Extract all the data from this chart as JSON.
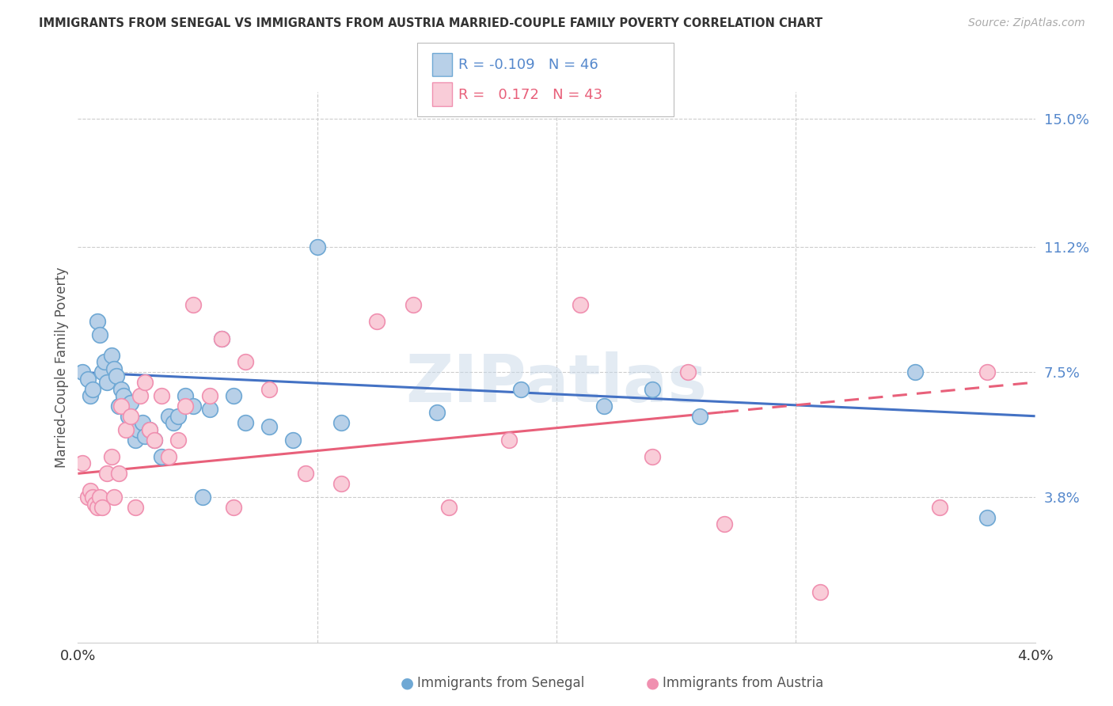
{
  "title": "IMMIGRANTS FROM SENEGAL VS IMMIGRANTS FROM AUSTRIA MARRIED-COUPLE FAMILY POVERTY CORRELATION CHART",
  "source": "Source: ZipAtlas.com",
  "ylabel": "Married-Couple Family Poverty",
  "xlim": [
    0.0,
    4.0
  ],
  "ylim": [
    -0.5,
    15.8
  ],
  "plot_ylim": [
    -0.5,
    15.8
  ],
  "yticks": [
    3.8,
    7.5,
    11.2,
    15.0
  ],
  "xtick_positions": [
    0.0,
    1.0,
    2.0,
    3.0,
    4.0
  ],
  "legend_blue_R": "-0.109",
  "legend_blue_N": "46",
  "legend_pink_R": "0.172",
  "legend_pink_N": "43",
  "blue_color": "#b8d0e8",
  "blue_edge": "#6fa8d4",
  "pink_color": "#f9ccd8",
  "pink_edge": "#f090b0",
  "blue_line_color": "#4472c4",
  "pink_line_color": "#e8607a",
  "watermark_color": "#c8d8e8",
  "senegal_x": [
    0.02,
    0.04,
    0.05,
    0.06,
    0.08,
    0.09,
    0.1,
    0.11,
    0.12,
    0.14,
    0.15,
    0.16,
    0.17,
    0.18,
    0.19,
    0.2,
    0.21,
    0.22,
    0.24,
    0.25,
    0.27,
    0.28,
    0.3,
    0.32,
    0.35,
    0.38,
    0.4,
    0.42,
    0.45,
    0.48,
    0.52,
    0.55,
    0.6,
    0.65,
    0.7,
    0.8,
    0.9,
    1.0,
    1.1,
    1.5,
    1.85,
    2.2,
    2.4,
    2.6,
    3.5,
    3.8
  ],
  "senegal_y": [
    7.5,
    7.3,
    6.8,
    7.0,
    9.0,
    8.6,
    7.5,
    7.8,
    7.2,
    8.0,
    7.6,
    7.4,
    6.5,
    7.0,
    6.8,
    6.5,
    6.2,
    6.6,
    5.5,
    5.8,
    6.0,
    5.6,
    5.8,
    5.5,
    5.0,
    6.2,
    6.0,
    6.2,
    6.8,
    6.5,
    3.8,
    6.4,
    8.5,
    6.8,
    6.0,
    5.9,
    5.5,
    11.2,
    6.0,
    6.3,
    7.0,
    6.5,
    7.0,
    6.2,
    7.5,
    3.2
  ],
  "austria_x": [
    0.02,
    0.04,
    0.05,
    0.06,
    0.07,
    0.08,
    0.09,
    0.1,
    0.12,
    0.14,
    0.15,
    0.17,
    0.18,
    0.2,
    0.22,
    0.24,
    0.26,
    0.28,
    0.3,
    0.32,
    0.35,
    0.38,
    0.42,
    0.45,
    0.48,
    0.55,
    0.6,
    0.65,
    0.7,
    0.8,
    0.95,
    1.1,
    1.25,
    1.4,
    1.55,
    1.8,
    2.1,
    2.4,
    2.55,
    2.7,
    3.1,
    3.6,
    3.8
  ],
  "austria_y": [
    4.8,
    3.8,
    4.0,
    3.8,
    3.6,
    3.5,
    3.8,
    3.5,
    4.5,
    5.0,
    3.8,
    4.5,
    6.5,
    5.8,
    6.2,
    3.5,
    6.8,
    7.2,
    5.8,
    5.5,
    6.8,
    5.0,
    5.5,
    6.5,
    9.5,
    6.8,
    8.5,
    3.5,
    7.8,
    7.0,
    4.5,
    4.2,
    9.0,
    9.5,
    3.5,
    5.5,
    9.5,
    5.0,
    7.5,
    3.0,
    1.0,
    3.5,
    7.5
  ],
  "blue_line_x0": 0.0,
  "blue_line_y0": 7.5,
  "blue_line_x1": 4.0,
  "blue_line_y1": 6.2,
  "pink_line_x0": 0.0,
  "pink_line_y0": 4.5,
  "pink_line_x1": 4.0,
  "pink_line_y1": 7.2,
  "pink_solid_end": 2.7
}
